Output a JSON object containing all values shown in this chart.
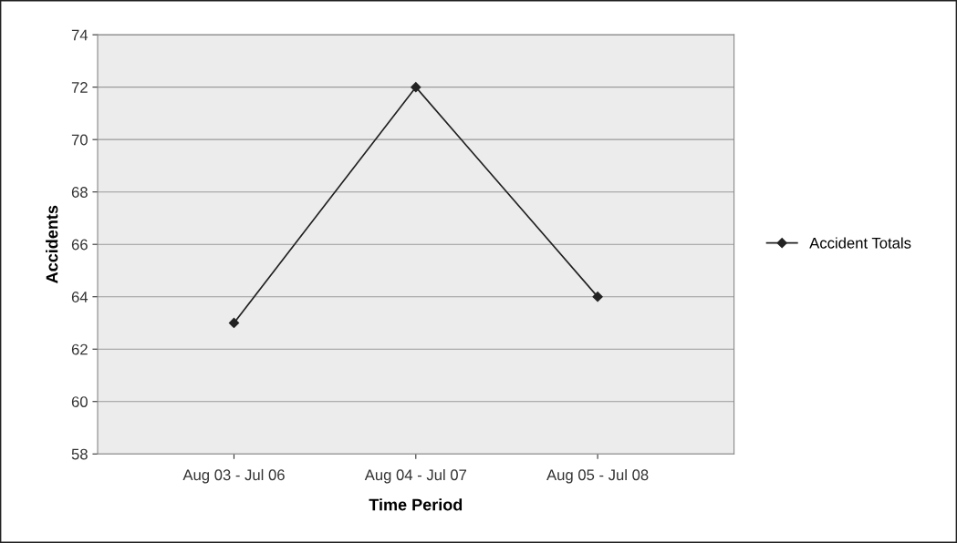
{
  "chart_data": {
    "type": "line",
    "xlabel": "Time Period",
    "ylabel": "Accidents",
    "categories": [
      "Aug 03 - Jul 06",
      "Aug 04 - Jul 07",
      "Aug 05 - Jul 08"
    ],
    "series": [
      {
        "name": "Accident Totals",
        "color": "#222222",
        "values": [
          63,
          72,
          64
        ]
      }
    ],
    "ylim": [
      58,
      74
    ],
    "yticks": [
      58,
      60,
      62,
      64,
      66,
      68,
      70,
      72,
      74
    ],
    "grid": "y",
    "legend": "right",
    "marker": "diamond",
    "line_style": "solid"
  }
}
